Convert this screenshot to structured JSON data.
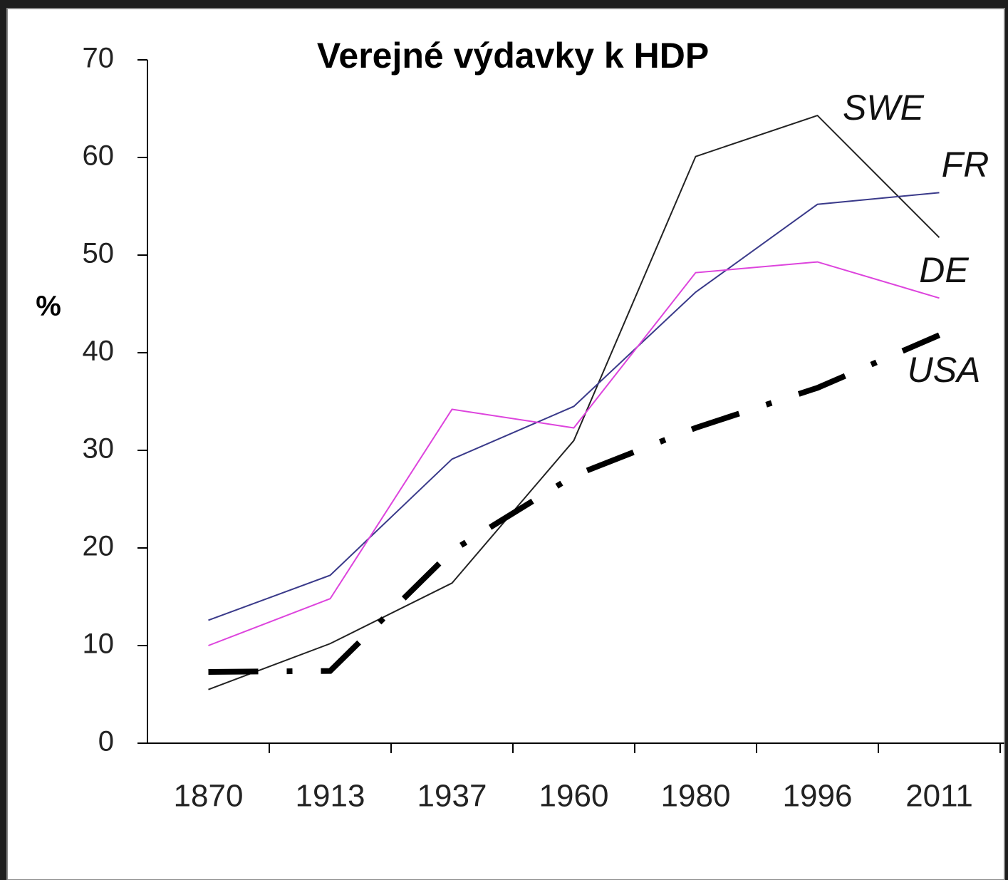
{
  "chart_data": {
    "type": "line",
    "title": "Verejné výdavky k HDP",
    "y_label": "%",
    "categories": [
      "1870",
      "1913",
      "1937",
      "1960",
      "1980",
      "1996",
      "2011"
    ],
    "series": [
      {
        "name": "SWE",
        "color": "#222222",
        "values": [
          5.5,
          10.2,
          16.4,
          31.0,
          60.1,
          64.3,
          51.8
        ]
      },
      {
        "name": "FR",
        "color": "#3a3a8a",
        "values": [
          12.6,
          17.2,
          29.1,
          34.5,
          46.2,
          55.2,
          56.4
        ]
      },
      {
        "name": "DE",
        "color": "#dd44dd",
        "values": [
          10.0,
          14.8,
          34.2,
          32.3,
          48.2,
          49.3,
          45.6
        ]
      },
      {
        "name": "USA",
        "color": "#000000",
        "linestyle": "dashdot",
        "values": [
          7.3,
          7.4,
          19.7,
          27.4,
          32.3,
          36.4,
          41.8
        ]
      }
    ],
    "ylim": [
      0,
      70
    ],
    "yticks": [
      0,
      10,
      20,
      30,
      40,
      50,
      60,
      70
    ]
  }
}
